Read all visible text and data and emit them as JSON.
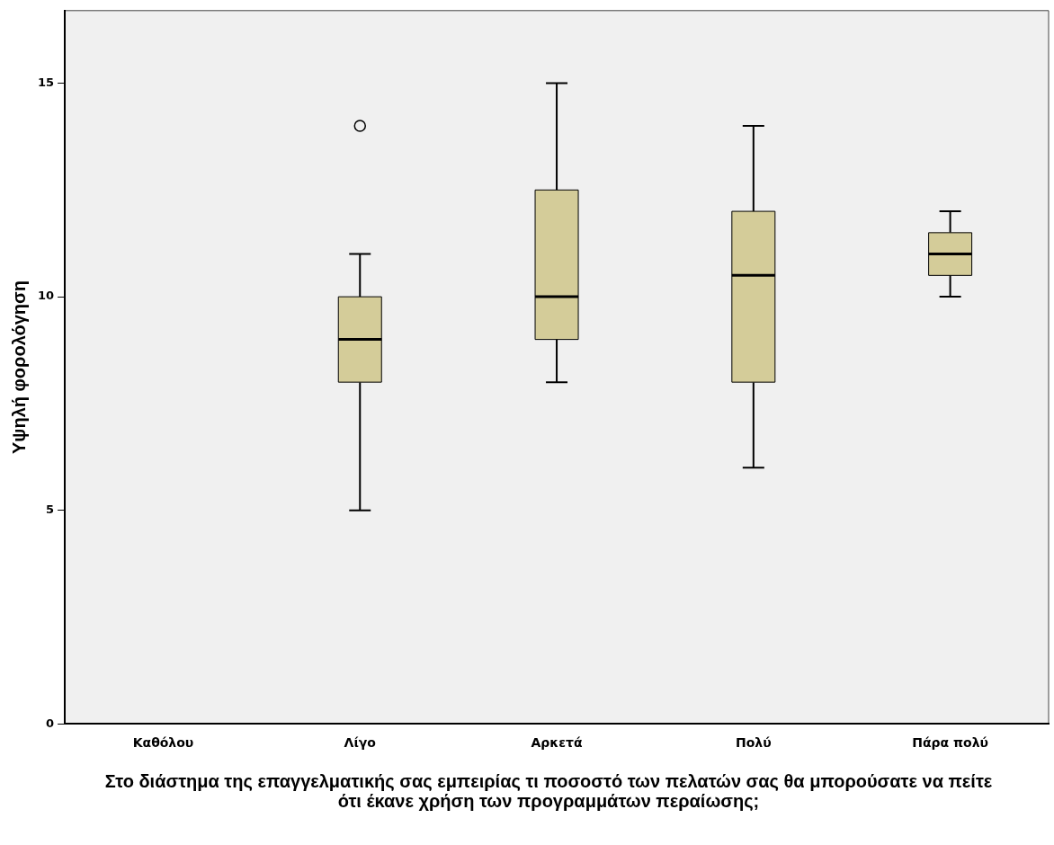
{
  "chart_data": {
    "type": "box",
    "xlabel": "Στο διάστημα της επαγγελματικής σας εμπειρίας τι ποσοστό των πελατών σας θα μπορούσατε να πείτε ότι έκανε χρήση των προγραμμάτων περαίωσης;",
    "ylabel": "Υψηλή φορολόγηση",
    "categories": [
      "Καθόλου",
      "Λίγο",
      "Αρκετά",
      "Πολύ",
      "Πάρα πολύ"
    ],
    "series": [
      {
        "color": "#d4cc99",
        "boxes": [
          null,
          {
            "low": 5,
            "q1": 8,
            "median": 9,
            "q3": 10,
            "high": 11,
            "outliers": [
              14
            ]
          },
          {
            "low": 8,
            "q1": 9,
            "median": 10,
            "q3": 12.5,
            "high": 15
          },
          {
            "low": 6,
            "q1": 8,
            "median": 10.5,
            "q3": 12,
            "high": 14
          },
          {
            "low": 10,
            "q1": 10.5,
            "median": 11,
            "q3": 11.5,
            "high": 12
          }
        ]
      }
    ],
    "ylim": [
      0,
      16.7
    ],
    "yticks": [
      0,
      5,
      10,
      15
    ],
    "grid": false,
    "legend": false
  }
}
